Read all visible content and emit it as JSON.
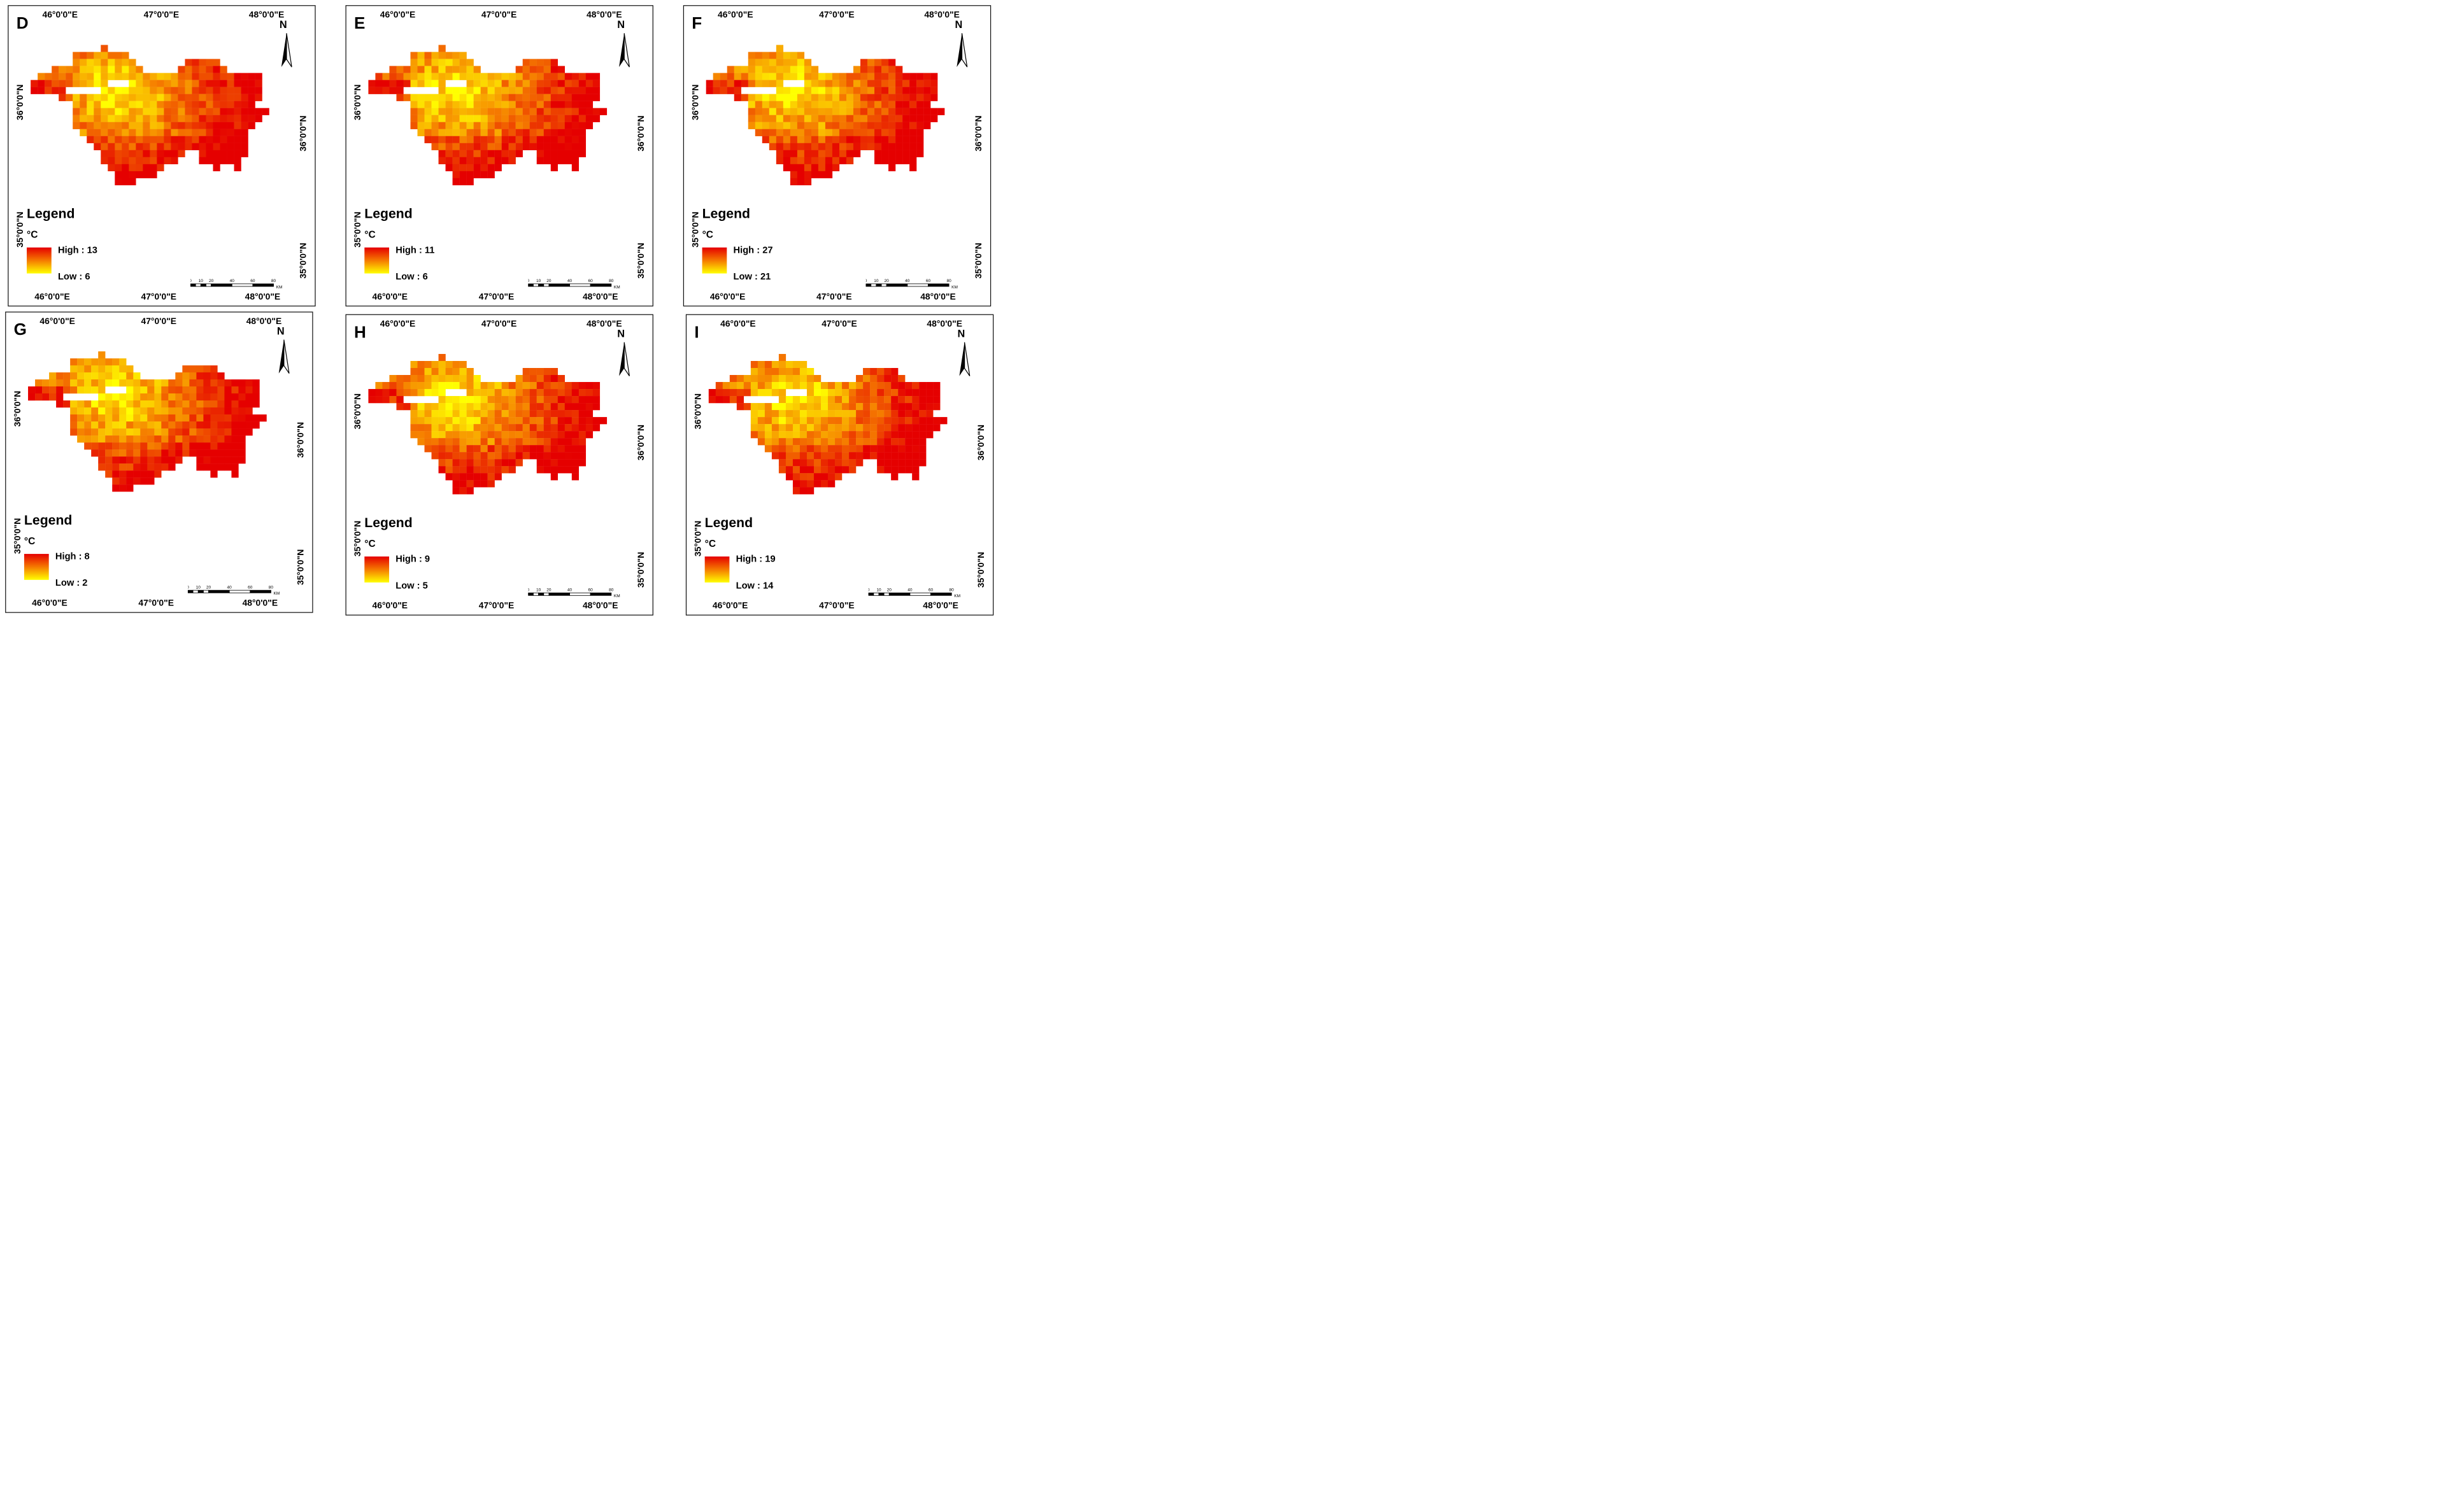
{
  "figure_title": "",
  "common_ticks": {
    "lon": [
      "46°0'0\"E",
      "47°0'0\"E",
      "48°0'0\"E"
    ],
    "lat": [
      "36°0'0\"N",
      "35°0'0\"N"
    ]
  },
  "legend_label": "Legend",
  "legend_unit": "°C",
  "north_label": "N",
  "scalebar": {
    "ticks": [
      "0",
      "10",
      "20",
      "40",
      "60",
      "80"
    ],
    "unit": "KM"
  },
  "colors": {
    "high": "#e50000",
    "mid": "#f57a00",
    "low": "#ffff00"
  },
  "panels": [
    {
      "id": "D",
      "letter": "D",
      "high_label": "High : 13",
      "low_label": "Low : 6",
      "high_value": 13,
      "low_value": 6
    },
    {
      "id": "E",
      "letter": "E",
      "high_label": "High : 11",
      "low_label": "Low : 6",
      "high_value": 11,
      "low_value": 6
    },
    {
      "id": "F",
      "letter": "F",
      "high_label": "High : 27",
      "low_label": "Low : 21",
      "high_value": 27,
      "low_value": 21
    },
    {
      "id": "G",
      "letter": "G",
      "high_label": "High : 8",
      "low_label": "Low : 2",
      "high_value": 8,
      "low_value": 2
    },
    {
      "id": "H",
      "letter": "H",
      "high_label": "High : 9",
      "low_label": "Low : 5",
      "high_value": 9,
      "low_value": 5
    },
    {
      "id": "I",
      "letter": "I",
      "high_label": "High : 19",
      "low_label": "Low : 14",
      "high_value": 19,
      "low_value": 14
    }
  ]
}
